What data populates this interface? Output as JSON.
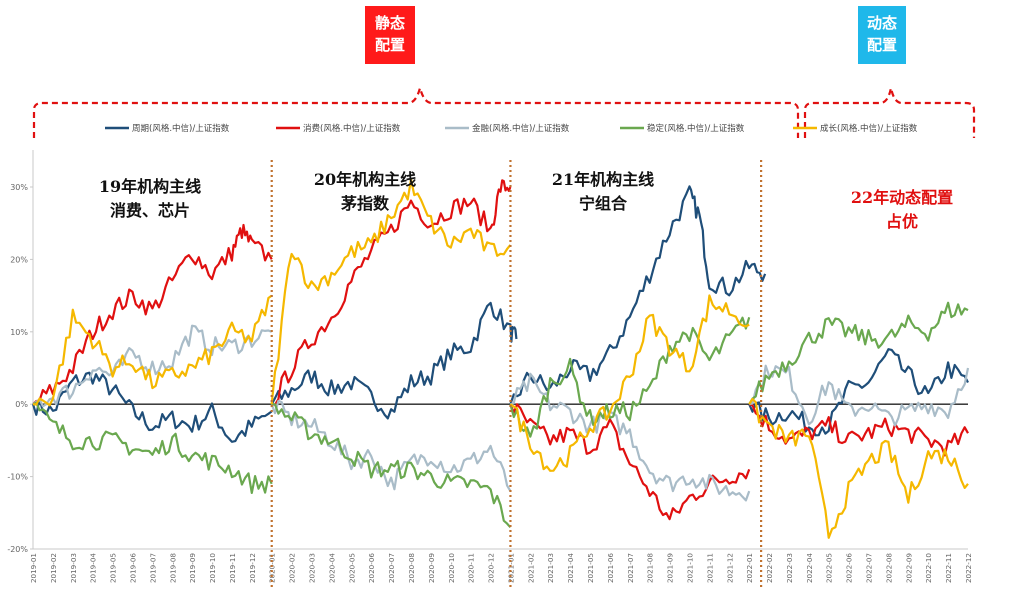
{
  "chart_data": {
    "type": "line",
    "title": "",
    "y_ticks": [
      "30%",
      "20%",
      "10%",
      "0%",
      "-10%",
      "-20%"
    ],
    "y_tick_values": [
      30,
      20,
      10,
      0,
      -10,
      -20
    ],
    "ylim": [
      -20,
      33
    ],
    "x_ticks": [
      "2019-01",
      "2019-02",
      "2019-03",
      "2019-04",
      "2019-05",
      "2019-06",
      "2019-07",
      "2019-08",
      "2019-09",
      "2019-10",
      "2019-11",
      "2019-12",
      "2020-01",
      "2020-02",
      "2020-03",
      "2020-04",
      "2020-05",
      "2020-06",
      "2020-07",
      "2020-08",
      "2020-09",
      "2020-10",
      "2020-11",
      "2020-12",
      "2021-01",
      "2021-02",
      "2021-03",
      "2021-04",
      "2021-05",
      "2021-06",
      "2021-07",
      "2021-08",
      "2021-09",
      "2021-10",
      "2021-11",
      "2021-12",
      "2022-01",
      "2022-02",
      "2022-03",
      "2022-04",
      "2022-05",
      "2022-06",
      "2022-07",
      "2022-08",
      "2022-09",
      "2022-10",
      "2022-11",
      "2022-12"
    ],
    "note": "Each year the cumulative relative return resets to 0% at the start; months index 0..47",
    "series": [
      {
        "name": "周期(风格.中信)/上证指数",
        "color": "#1f4e79",
        "segments": [
          [
            [
              0,
              0
            ],
            [
              1,
              -1
            ],
            [
              2,
              3
            ],
            [
              3,
              4
            ],
            [
              4,
              2
            ],
            [
              5,
              -1
            ],
            [
              6,
              -3
            ],
            [
              7,
              -2
            ],
            [
              8,
              -3
            ],
            [
              9,
              -1
            ],
            [
              10,
              -5
            ],
            [
              11,
              -3
            ],
            [
              12,
              -1
            ]
          ],
          [
            [
              12,
              0
            ],
            [
              13,
              2
            ],
            [
              14,
              4
            ],
            [
              15,
              2
            ],
            [
              16,
              3
            ],
            [
              17,
              1
            ],
            [
              18,
              -1
            ],
            [
              19,
              3
            ],
            [
              20,
              4
            ],
            [
              21,
              7
            ],
            [
              22,
              8
            ],
            [
              23,
              14
            ],
            [
              24,
              10
            ],
            [
              24.3,
              9
            ]
          ],
          [
            [
              24,
              0
            ],
            [
              25,
              4
            ],
            [
              26,
              2
            ],
            [
              27,
              5
            ],
            [
              28,
              4
            ],
            [
              29,
              7
            ],
            [
              30,
              12
            ],
            [
              31,
              18
            ],
            [
              32,
              24
            ],
            [
              33,
              29
            ],
            [
              33.5,
              26
            ],
            [
              34,
              17
            ],
            [
              35,
              16
            ],
            [
              36,
              19
            ],
            [
              36.8,
              18
            ]
          ],
          [
            [
              36,
              0
            ],
            [
              37,
              -2
            ],
            [
              38,
              -1
            ],
            [
              39,
              -3
            ],
            [
              40,
              -3
            ],
            [
              41,
              2
            ],
            [
              42,
              3
            ],
            [
              43,
              7
            ],
            [
              44,
              4
            ],
            [
              45,
              1
            ],
            [
              46,
              5
            ],
            [
              47,
              3
            ]
          ]
        ]
      },
      {
        "name": "消费(风格.中信)/上证指数",
        "color": "#e01010",
        "segments": [
          [
            [
              0,
              0
            ],
            [
              1,
              2
            ],
            [
              2,
              5
            ],
            [
              3,
              10
            ],
            [
              4,
              13
            ],
            [
              5,
              15
            ],
            [
              6,
              13
            ],
            [
              7,
              17
            ],
            [
              8,
              21
            ],
            [
              9,
              18
            ],
            [
              10,
              21
            ],
            [
              10.5,
              24
            ],
            [
              11,
              22
            ],
            [
              12,
              20
            ]
          ],
          [
            [
              12,
              0
            ],
            [
              13,
              5
            ],
            [
              14,
              9
            ],
            [
              15,
              12
            ],
            [
              16,
              17
            ],
            [
              17,
              21
            ],
            [
              18,
              24
            ],
            [
              19,
              28
            ],
            [
              20,
              25
            ],
            [
              21,
              27
            ],
            [
              22,
              28
            ],
            [
              23,
              24
            ],
            [
              23.5,
              30
            ],
            [
              24,
              30
            ]
          ],
          [
            [
              24,
              0
            ],
            [
              25,
              -3
            ],
            [
              26,
              -5
            ],
            [
              27,
              -4
            ],
            [
              28,
              -6
            ],
            [
              29,
              -3
            ],
            [
              30,
              -8
            ],
            [
              31,
              -12
            ],
            [
              32,
              -16
            ],
            [
              33,
              -13
            ],
            [
              34,
              -11
            ],
            [
              35,
              -10
            ],
            [
              36,
              -9
            ]
          ],
          [
            [
              36,
              0
            ],
            [
              37,
              -3
            ],
            [
              38,
              -5
            ],
            [
              39,
              -4
            ],
            [
              40,
              -3
            ],
            [
              41,
              -5
            ],
            [
              42,
              -4
            ],
            [
              43,
              -3
            ],
            [
              44,
              -4
            ],
            [
              45,
              -5
            ],
            [
              46,
              -6
            ],
            [
              47,
              -4
            ]
          ]
        ]
      },
      {
        "name": "金融(风格.中信)/上证指数",
        "color": "#a9bcc8",
        "segments": [
          [
            [
              0,
              0
            ],
            [
              1,
              1
            ],
            [
              2,
              2
            ],
            [
              3,
              5
            ],
            [
              4,
              4
            ],
            [
              5,
              7
            ],
            [
              6,
              5
            ],
            [
              7,
              6
            ],
            [
              8,
              10
            ],
            [
              9,
              8
            ],
            [
              10,
              8
            ],
            [
              11,
              9
            ],
            [
              12,
              10
            ]
          ],
          [
            [
              12,
              0
            ],
            [
              13,
              -2
            ],
            [
              14,
              -3
            ],
            [
              15,
              -5
            ],
            [
              16,
              -8
            ],
            [
              17,
              -7
            ],
            [
              18,
              -11
            ],
            [
              19,
              -8
            ],
            [
              20,
              -7
            ],
            [
              21,
              -9
            ],
            [
              22,
              -8
            ],
            [
              23,
              -6
            ],
            [
              24,
              -12
            ]
          ],
          [
            [
              24,
              0
            ],
            [
              25,
              3
            ],
            [
              26,
              0
            ],
            [
              27,
              -1
            ],
            [
              28,
              -3
            ],
            [
              29,
              -2
            ],
            [
              30,
              -4
            ],
            [
              31,
              -9
            ],
            [
              32,
              -11
            ],
            [
              33,
              -10
            ],
            [
              34,
              -11
            ],
            [
              35,
              -12
            ],
            [
              36,
              -12
            ]
          ],
          [
            [
              36,
              0
            ],
            [
              37,
              5
            ],
            [
              38,
              4
            ],
            [
              39,
              -2
            ],
            [
              40,
              3
            ],
            [
              41,
              -1
            ],
            [
              42,
              0
            ],
            [
              43,
              -2
            ],
            [
              44,
              -1
            ],
            [
              45,
              0
            ],
            [
              46,
              -1
            ],
            [
              47,
              5
            ]
          ]
        ]
      },
      {
        "name": "稳定(风格.中信)/上证指数",
        "color": "#6aa84f",
        "segments": [
          [
            [
              0,
              0
            ],
            [
              1,
              -3
            ],
            [
              2,
              -5
            ],
            [
              3,
              -5
            ],
            [
              4,
              -5
            ],
            [
              5,
              -6
            ],
            [
              6,
              -7
            ],
            [
              7,
              -5
            ],
            [
              8,
              -7
            ],
            [
              9,
              -8
            ],
            [
              10,
              -9
            ],
            [
              11,
              -11
            ],
            [
              12,
              -11
            ]
          ],
          [
            [
              12,
              0
            ],
            [
              13,
              -2
            ],
            [
              14,
              -4
            ],
            [
              15,
              -5
            ],
            [
              16,
              -7
            ],
            [
              17,
              -9
            ],
            [
              18,
              -9
            ],
            [
              19,
              -9
            ],
            [
              20,
              -10
            ],
            [
              21,
              -11
            ],
            [
              22,
              -11
            ],
            [
              23,
              -12
            ],
            [
              24,
              -17
            ]
          ],
          [
            [
              24,
              0
            ],
            [
              25,
              -5
            ],
            [
              26,
              3
            ],
            [
              27,
              5
            ],
            [
              28,
              -2
            ],
            [
              29,
              -1
            ],
            [
              30,
              -1
            ],
            [
              31,
              2
            ],
            [
              32,
              8
            ],
            [
              33,
              10
            ],
            [
              34,
              6
            ],
            [
              35,
              9
            ],
            [
              36,
              12
            ]
          ],
          [
            [
              36,
              0
            ],
            [
              37,
              4
            ],
            [
              38,
              6
            ],
            [
              39,
              9
            ],
            [
              40,
              11
            ],
            [
              41,
              10
            ],
            [
              42,
              9
            ],
            [
              43,
              9
            ],
            [
              44,
              11
            ],
            [
              45,
              10
            ],
            [
              46,
              13
            ],
            [
              47,
              13
            ]
          ]
        ]
      },
      {
        "name": "成长(风格.中信)/上证指数",
        "color": "#f5b800",
        "segments": [
          [
            [
              0,
              0
            ],
            [
              1,
              1
            ],
            [
              2,
              12
            ],
            [
              3,
              9
            ],
            [
              4,
              5
            ],
            [
              5,
              6
            ],
            [
              6,
              3
            ],
            [
              7,
              4
            ],
            [
              8,
              5
            ],
            [
              9,
              7
            ],
            [
              10,
              10
            ],
            [
              11,
              9
            ],
            [
              12,
              15
            ]
          ],
          [
            [
              12,
              0
            ],
            [
              13,
              22
            ],
            [
              14,
              16
            ],
            [
              15,
              18
            ],
            [
              16,
              21
            ],
            [
              17,
              22
            ],
            [
              18,
              26
            ],
            [
              19,
              30
            ],
            [
              20,
              25
            ],
            [
              21,
              22
            ],
            [
              22,
              24
            ],
            [
              23,
              21
            ],
            [
              24,
              22
            ]
          ],
          [
            [
              24,
              0
            ],
            [
              25,
              -5
            ],
            [
              26,
              -9
            ],
            [
              27,
              -7
            ],
            [
              28,
              -3
            ],
            [
              29,
              -1
            ],
            [
              30,
              4
            ],
            [
              31,
              12
            ],
            [
              32,
              8
            ],
            [
              33,
              5
            ],
            [
              34,
              14
            ],
            [
              35,
              13
            ],
            [
              36,
              11
            ]
          ],
          [
            [
              36,
              0
            ],
            [
              37,
              -3
            ],
            [
              38,
              -5
            ],
            [
              39,
              -4
            ],
            [
              40,
              -18
            ],
            [
              41,
              -12
            ],
            [
              42,
              -8
            ],
            [
              43,
              -6
            ],
            [
              44,
              -13
            ],
            [
              45,
              -7
            ],
            [
              46,
              -7
            ],
            [
              47,
              -11
            ]
          ]
        ]
      }
    ],
    "annotations": [
      {
        "text_lines": [
          "19年机构主线",
          "消费、芯片"
        ],
        "color": "black"
      },
      {
        "text_lines": [
          "20年机构主线",
          "茅指数"
        ],
        "color": "black"
      },
      {
        "text_lines": [
          "21年机构主线",
          "宁组合"
        ],
        "color": "black"
      },
      {
        "text_lines": [
          "22年动态配置",
          "占优"
        ],
        "color": "red"
      }
    ],
    "boxes": [
      {
        "text_lines": [
          "静态",
          "配置"
        ],
        "color": "#ff1a1a"
      },
      {
        "text_lines": [
          "动态",
          "配置"
        ],
        "color": "#1fb8ea"
      }
    ]
  }
}
